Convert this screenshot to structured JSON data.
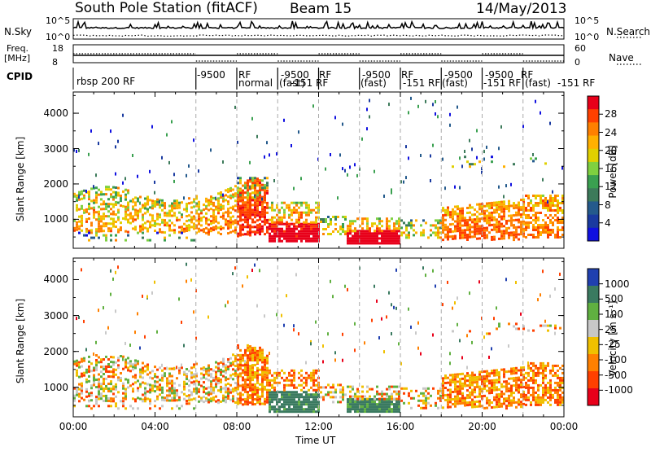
{
  "header": {
    "station": "South Pole Station (fitACF)",
    "beam": "Beam 15",
    "date": "14/May/2013"
  },
  "strips": {
    "nsky": {
      "label": "N.Sky",
      "ticks": [
        "10^5",
        "10^0"
      ]
    },
    "nsearch": {
      "label": "N.Search",
      "ticks": [
        "10^5",
        "10^0"
      ]
    },
    "freq": {
      "label_line1": "Freq.",
      "label_line2": "[MHz]",
      "ticks": [
        "18",
        "8"
      ]
    },
    "nave": {
      "label": "Nave",
      "ticks": [
        "60",
        "0"
      ]
    },
    "cpid": {
      "label": "CPID",
      "segments": [
        {
          "text": "rbsp 200 RF"
        },
        {
          "text": "-9500"
        },
        {
          "text": "RF"
        },
        {
          "text": "normal"
        },
        {
          "text": "(fast)"
        },
        {
          "text": "-9500"
        },
        {
          "text": "RF"
        },
        {
          "text": "-151 RF"
        },
        {
          "text": "-9500"
        },
        {
          "text": "(fast)"
        },
        {
          "text": "RF"
        },
        {
          "text": "-151 RF"
        },
        {
          "text": "-9500"
        },
        {
          "text": "(fast)"
        },
        {
          "text": "-9500"
        },
        {
          "text": "RF"
        },
        {
          "text": "-151 RF"
        },
        {
          "text": "(fast)"
        },
        {
          "text": "-151 RF"
        }
      ]
    }
  },
  "colorbars": {
    "power": {
      "label": "Power [dB]",
      "ticks": [
        "28",
        "24",
        "20",
        "16",
        "12",
        "8",
        "4"
      ],
      "colors": [
        "#e8001a",
        "#ff4000",
        "#ff8000",
        "#ffb000",
        "#e0d000",
        "#7fd040",
        "#3aa050",
        "#3c7a5a",
        "#245a8c",
        "#1a3aa0",
        "#1010e0"
      ]
    },
    "velocity": {
      "label": "Velocity [m s⁻¹]",
      "ticks": [
        "1000",
        "500",
        "100",
        "25",
        "-25",
        "-100",
        "-500",
        "-1000"
      ],
      "colors": [
        "#2040b0",
        "#3a7a60",
        "#60b040",
        "#c8c8c8",
        "#f0c000",
        "#ff8000",
        "#ff4000",
        "#e8001a"
      ]
    }
  },
  "chart_data": [
    {
      "type": "heatmap",
      "title": "",
      "ylabel": "Slant Range [km]",
      "xlabel": "",
      "x_ticks": [
        "00:00",
        "04:00",
        "08:00",
        "12:00",
        "16:00",
        "20:00",
        "00:00"
      ],
      "y_ticks": [
        "4000",
        "3000",
        "2000",
        "1000"
      ],
      "ylim": [
        180,
        4600
      ],
      "xlim_hours": [
        0,
        24
      ],
      "dashed_hours": [
        6,
        8,
        10,
        12,
        14,
        16,
        18,
        20,
        22
      ]
    },
    {
      "type": "heatmap",
      "title": "",
      "ylabel": "Slant Range [km]",
      "xlabel": "Time UT",
      "x_ticks": [
        "00:00",
        "04:00",
        "08:00",
        "12:00",
        "16:00",
        "20:00",
        "00:00"
      ],
      "y_ticks": [
        "4000",
        "3000",
        "2000",
        "1000"
      ],
      "ylim": [
        180,
        4600
      ],
      "xlim_hours": [
        0,
        24
      ],
      "dashed_hours": [
        6,
        8,
        10,
        12,
        14,
        16,
        18,
        20,
        22
      ]
    }
  ]
}
